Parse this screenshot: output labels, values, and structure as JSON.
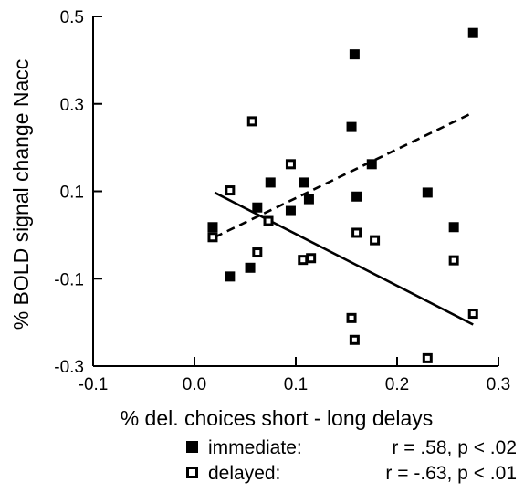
{
  "chart_data": {
    "type": "scatter",
    "xlabel": "% del. choices short - long delays",
    "ylabel": "% BOLD signal change Nacc",
    "xlim": [
      -0.1,
      0.3
    ],
    "ylim": [
      -0.3,
      0.5
    ],
    "x_ticks": [
      "-0.1",
      "0.0",
      "0.1",
      "0.2",
      "0.3"
    ],
    "y_ticks": [
      "0.5",
      "0.3",
      "0.1",
      "-0.1",
      "-0.3"
    ],
    "grid": false,
    "legend_position": "bottom-right",
    "series": [
      {
        "name": "immediate",
        "marker": "filled-square",
        "color": "#000000",
        "points": [
          {
            "x": 0.018,
            "y": 0.018
          },
          {
            "x": 0.035,
            "y": -0.095
          },
          {
            "x": 0.055,
            "y": -0.075
          },
          {
            "x": 0.062,
            "y": 0.063
          },
          {
            "x": 0.075,
            "y": 0.12
          },
          {
            "x": 0.095,
            "y": 0.055
          },
          {
            "x": 0.108,
            "y": 0.12
          },
          {
            "x": 0.113,
            "y": 0.082
          },
          {
            "x": 0.155,
            "y": 0.247
          },
          {
            "x": 0.158,
            "y": 0.413
          },
          {
            "x": 0.16,
            "y": 0.088
          },
          {
            "x": 0.175,
            "y": 0.162
          },
          {
            "x": 0.23,
            "y": 0.097
          },
          {
            "x": 0.256,
            "y": 0.018
          },
          {
            "x": 0.275,
            "y": 0.462
          }
        ],
        "fit_line": {
          "style": "dashed",
          "x1": 0.02,
          "y1": -0.005,
          "x2": 0.275,
          "y2": 0.28
        }
      },
      {
        "name": "delayed",
        "marker": "open-square",
        "color": "#000000",
        "points": [
          {
            "x": 0.018,
            "y": -0.005
          },
          {
            "x": 0.035,
            "y": 0.102
          },
          {
            "x": 0.057,
            "y": 0.26
          },
          {
            "x": 0.062,
            "y": -0.04
          },
          {
            "x": 0.073,
            "y": 0.032
          },
          {
            "x": 0.095,
            "y": 0.162
          },
          {
            "x": 0.107,
            "y": -0.057
          },
          {
            "x": 0.115,
            "y": -0.053
          },
          {
            "x": 0.155,
            "y": -0.19
          },
          {
            "x": 0.158,
            "y": -0.24
          },
          {
            "x": 0.16,
            "y": 0.005
          },
          {
            "x": 0.178,
            "y": -0.012
          },
          {
            "x": 0.23,
            "y": -0.282
          },
          {
            "x": 0.256,
            "y": -0.058
          },
          {
            "x": 0.275,
            "y": -0.18
          }
        ],
        "fit_line": {
          "style": "solid",
          "x1": 0.02,
          "y1": 0.097,
          "x2": 0.275,
          "y2": -0.205
        }
      }
    ],
    "legend": [
      {
        "marker": "filled-square",
        "label": "immediate:",
        "stats": "r =   .58, p < .02"
      },
      {
        "marker": "open-square",
        "label": "delayed:",
        "stats": "r =  -.63, p < .01"
      }
    ]
  }
}
